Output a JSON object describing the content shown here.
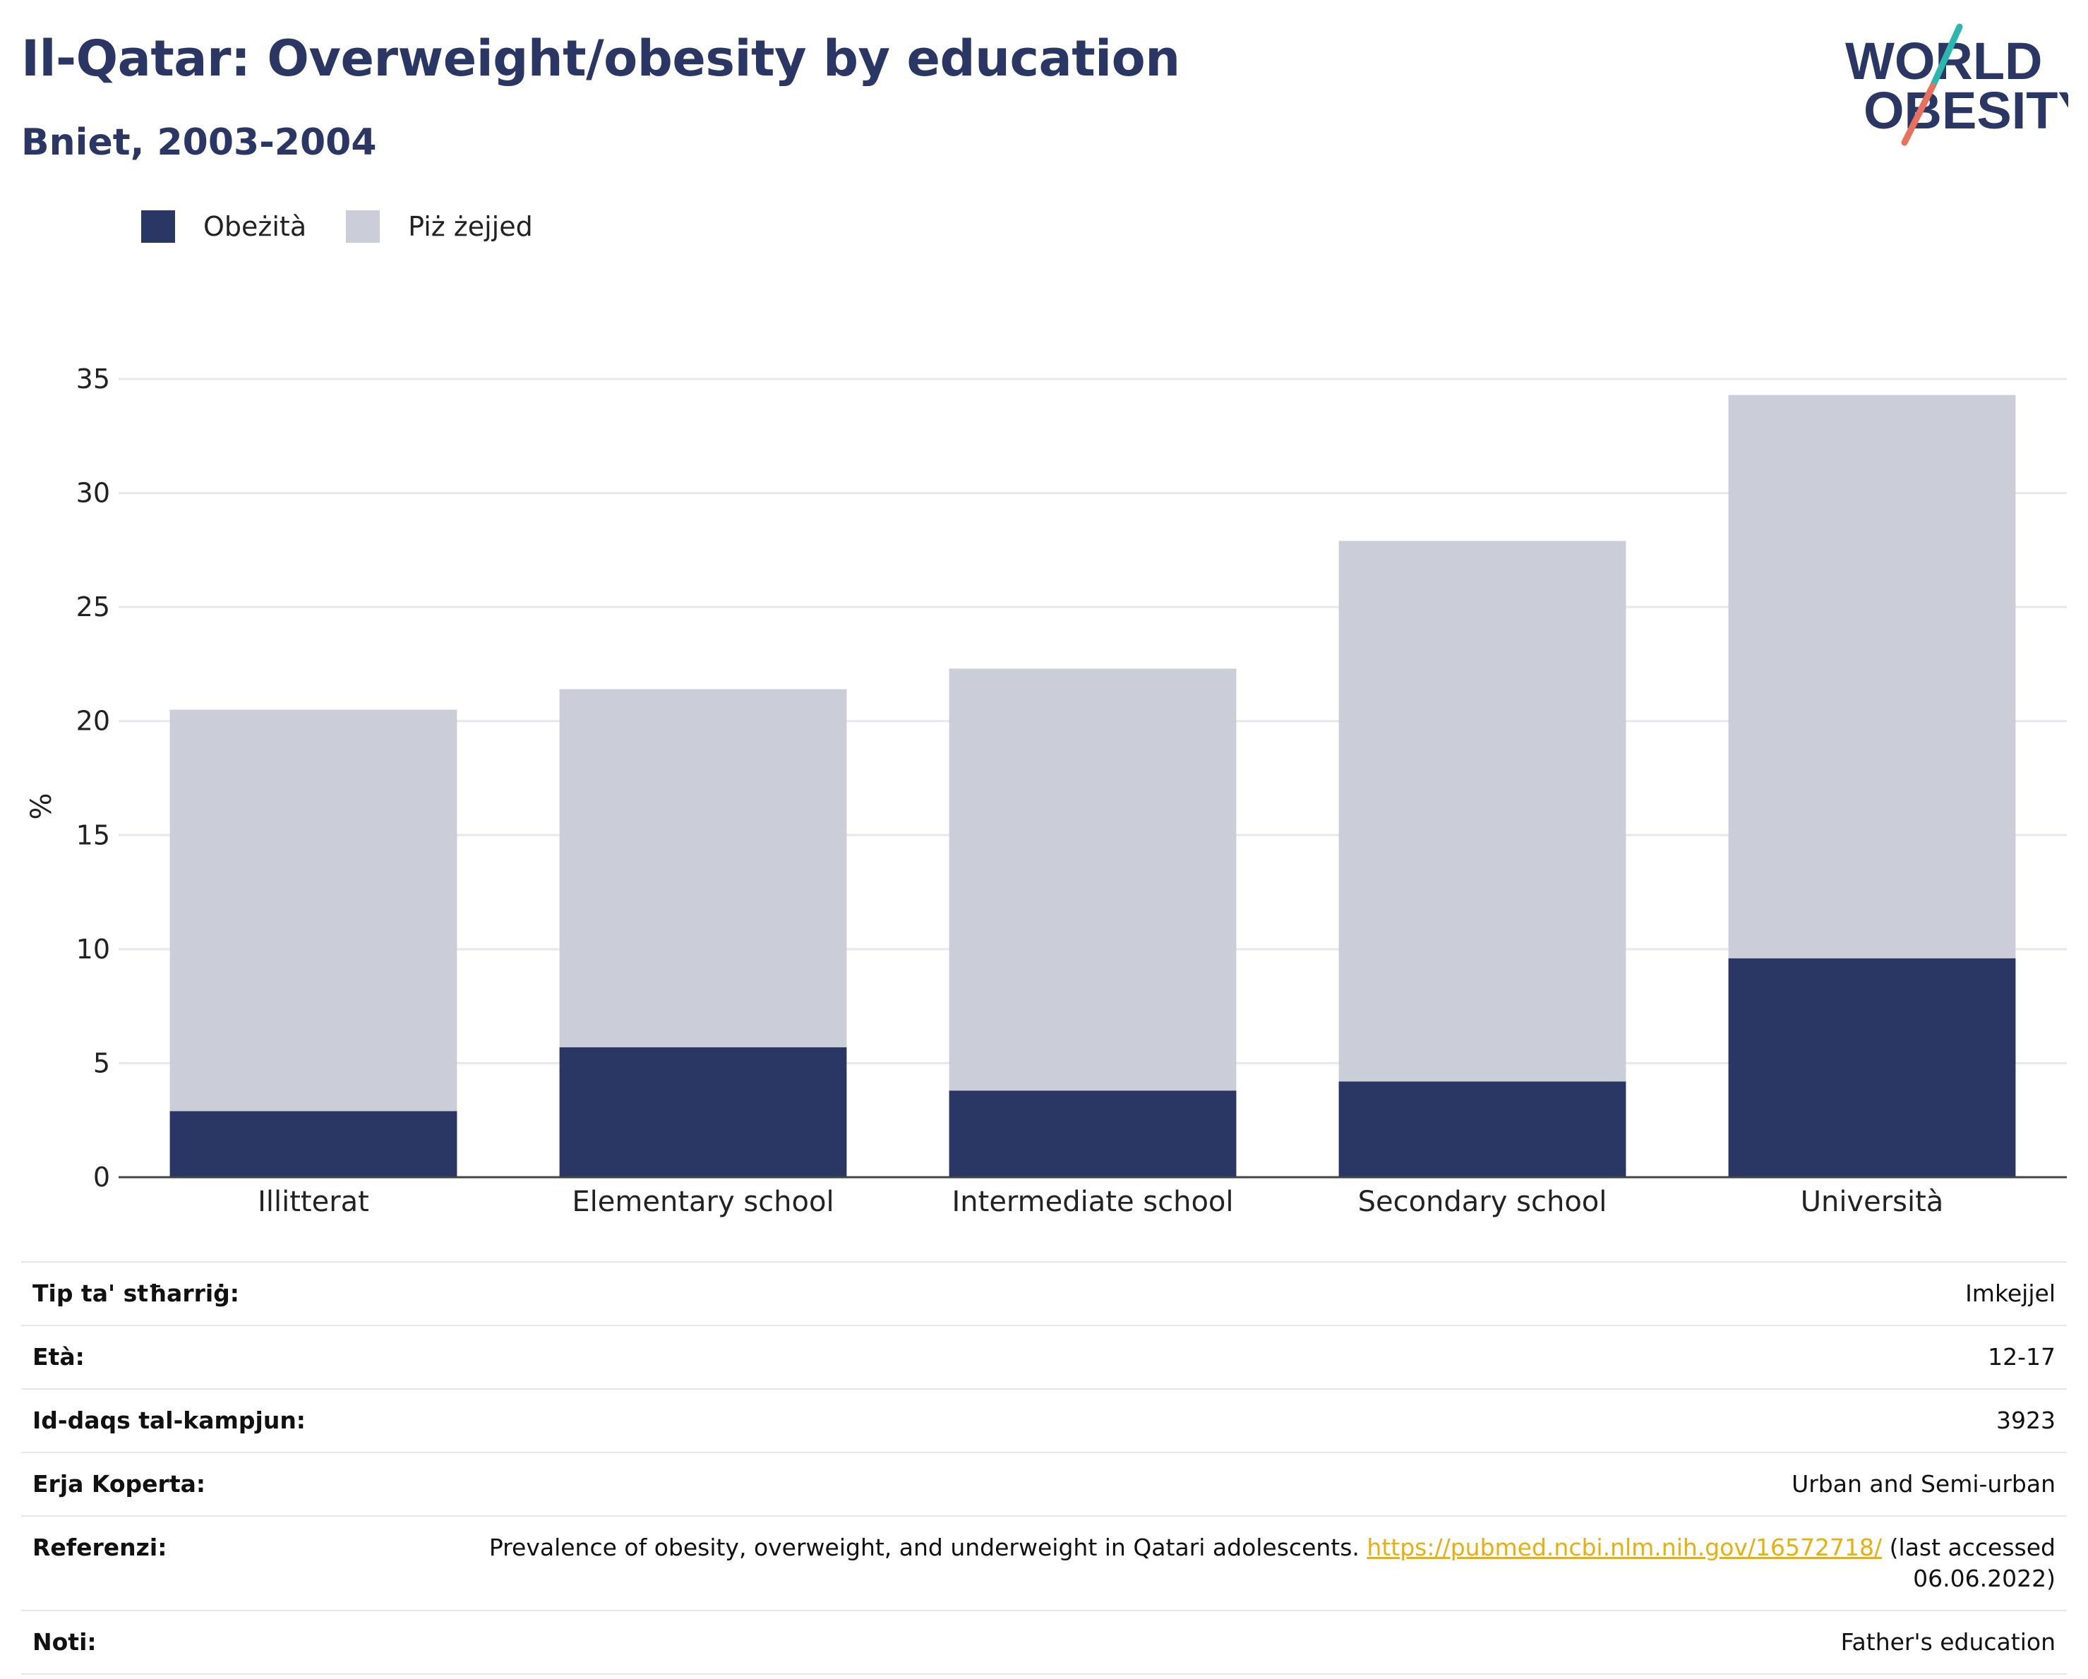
{
  "header": {
    "title": "Il-Qatar: Overweight/obesity by education",
    "subtitle": "Bniet, 2003-2004",
    "logo": {
      "line1": "WORLD",
      "line2": "OBESITY"
    }
  },
  "colors": {
    "obese": "#2a3663",
    "overweight": "#cbcdd8",
    "text_dark": "#2a3663",
    "logo_teal": "#2db6b0",
    "logo_coral": "#e8705c",
    "link": "#e8b00f"
  },
  "legend": [
    {
      "label": "Obeżità",
      "color": "#2a3663"
    },
    {
      "label": "Piż żejjed",
      "color": "#cbcdd8"
    }
  ],
  "chart_data": {
    "type": "bar",
    "stacked": true,
    "categories": [
      "Illitterat",
      "Elementary school",
      "Intermediate school",
      "Secondary school",
      "Università"
    ],
    "series": [
      {
        "name": "Obeżità",
        "color": "#2a3663",
        "values": [
          2.9,
          5.7,
          3.8,
          4.2,
          9.6
        ]
      },
      {
        "name": "Piż żejjed",
        "color": "#cbcdd8",
        "values": [
          17.6,
          15.7,
          18.5,
          23.7,
          24.7
        ]
      }
    ],
    "ylabel": "%",
    "ylim": [
      0,
      35
    ],
    "yticks": [
      0,
      5,
      10,
      15,
      20,
      25,
      30,
      35
    ],
    "grid": true,
    "legend_position": "top-left"
  },
  "info": {
    "survey_type": {
      "label": "Tip ta' stħarriġ:",
      "value": "Imkejjel"
    },
    "age": {
      "label": "Età:",
      "value": "12-17"
    },
    "sample_size": {
      "label": "Id-daqs tal-kampjun:",
      "value": "3923"
    },
    "area": {
      "label": "Erja Koperta:",
      "value": "Urban and Semi-urban"
    },
    "references": {
      "label": "Referenzi:",
      "text": "Prevalence of obesity, overweight, and underweight in Qatari adolescents.",
      "link": "https://pubmed.ncbi.nlm.nih.gov/16572718/",
      "accessed_line1": "(last accessed",
      "accessed_line2": "06.06.2022)"
    },
    "notes": {
      "label": "Noti:",
      "value": "Father's education"
    }
  }
}
